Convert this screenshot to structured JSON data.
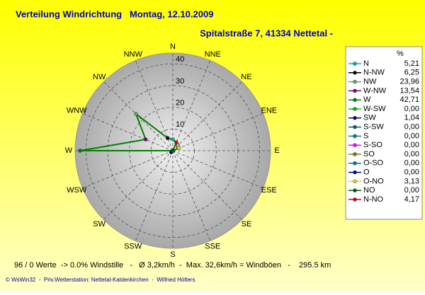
{
  "chart_data": {
    "type": "radar",
    "title": "Verteilung Windrichtung   Montag, 12.10.2009",
    "subtitle": "Spitalstraße 7, 41334 Nettetal -",
    "direction": "counterclockwise",
    "categories": [
      "N",
      "NNW",
      "NW",
      "WNW",
      "W",
      "WSW",
      "SW",
      "SSW",
      "S",
      "SSE",
      "SE",
      "ESE",
      "E",
      "ENE",
      "NE",
      "NNE"
    ],
    "line_color": "#008000",
    "series": [
      {
        "values": [
          5.21,
          6.25,
          23.96,
          13.54,
          42.71,
          0.0,
          1.04,
          0.0,
          0.0,
          0.0,
          0.0,
          0.0,
          0.0,
          3.13,
          0.0,
          4.17
        ],
        "value_labels": [
          "5,21",
          "6,25",
          "23,96",
          "13,54",
          "42,71",
          "0,00",
          "1,04",
          "0,00",
          "0,00",
          "0,00",
          "0,00",
          "0,00",
          "0,00",
          "3,13",
          "0,00",
          "4,17"
        ],
        "colors": [
          "#00b0b0",
          "#000000",
          "#70a070",
          "#800080",
          "#008000",
          "#00c000",
          "#000080",
          "#006060",
          "#008080",
          "#ff00ff",
          "#808000",
          "#008080",
          "#0000a0",
          "#e0e000",
          "#006000",
          "#e00000"
        ]
      }
    ],
    "legend": {
      "title": "%",
      "names": [
        "N",
        "N-NW",
        "NW",
        "W-NW",
        "W",
        "W-SW",
        "SW",
        "S-SW",
        "S",
        "S-SO",
        "SO",
        "O-SO",
        "O",
        "O-NO",
        "NO",
        "N-NO"
      ]
    },
    "rlim": [
      0,
      45
    ],
    "rticks": [
      0,
      10,
      20,
      30,
      40
    ],
    "grid": true,
    "footer": "96 / 0 Werte  -> 0.0% Windstille   -   Ø 3,2km/h  -  Max. 32,6km/h = Windböen   -    295.5 km",
    "credit": "© WsWin32  -  Priv.Wetterstation: Nettetal-Kaldenkirchen  -  Wilfried Hölters"
  }
}
